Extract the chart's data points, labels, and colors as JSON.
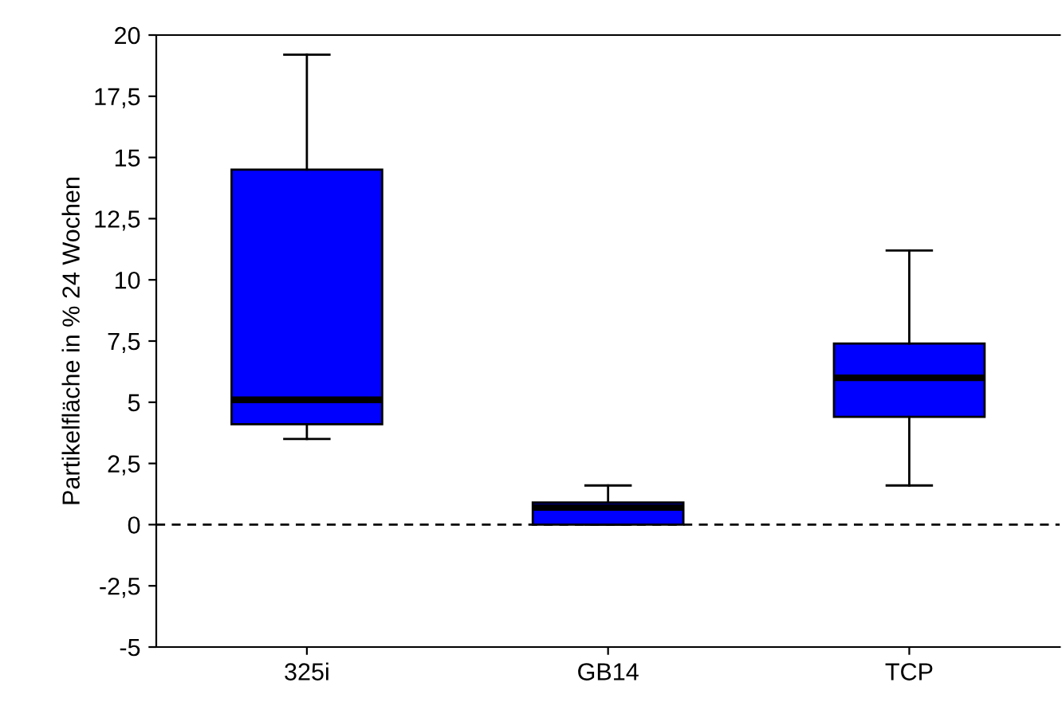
{
  "chart_data": {
    "type": "box",
    "ylabel": "Partikelfläche in % 24 Wochen",
    "categories": [
      "325i",
      "GB14",
      "TCP"
    ],
    "boxes": [
      {
        "low": 3.5,
        "q1": 4.1,
        "median": 5.1,
        "q3": 14.5,
        "high": 19.2
      },
      {
        "low": 0,
        "q1": 0,
        "median": 0.7,
        "q3": 0.9,
        "high": 1.6
      },
      {
        "low": 1.6,
        "q1": 4.4,
        "median": 6.0,
        "q3": 7.4,
        "high": 11.2
      }
    ],
    "color": "#0000ff",
    "ylim": [
      -5,
      20
    ],
    "yticks": [
      {
        "value": -5,
        "label": "-5"
      },
      {
        "value": -2.5,
        "label": "-2,5"
      },
      {
        "value": 0,
        "label": "0"
      },
      {
        "value": 2.5,
        "label": "2,5"
      },
      {
        "value": 5,
        "label": "5"
      },
      {
        "value": 7.5,
        "label": "7,5"
      },
      {
        "value": 10,
        "label": "10"
      },
      {
        "value": 12.5,
        "label": "12,5"
      },
      {
        "value": 15,
        "label": "15"
      },
      {
        "value": 17.5,
        "label": "17,5"
      },
      {
        "value": 20,
        "label": "20"
      }
    ],
    "ref_lines": [
      {
        "axis": "y",
        "value": 0,
        "color": "#000000",
        "line_style": "dashed"
      }
    ],
    "grid": false
  }
}
